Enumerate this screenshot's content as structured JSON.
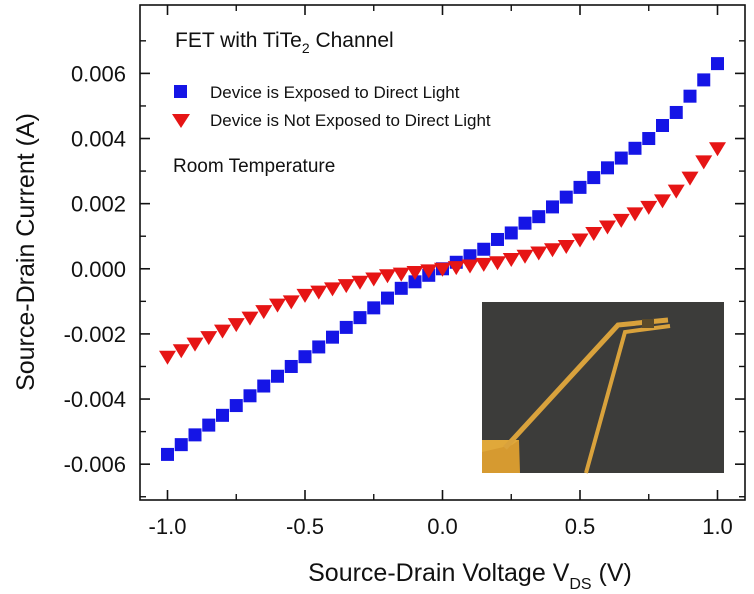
{
  "chart_data": {
    "type": "scatter",
    "xlabel": "Source-Drain Voltage V",
    "xlabel_sub": "DS",
    "xlabel_unit": " (V)",
    "ylabel": "Source-Drain Current (A)",
    "xlim": [
      -1.1,
      1.1
    ],
    "ylim": [
      -0.0071,
      0.0081
    ],
    "x_ticks": [
      -1.0,
      -0.5,
      0.0,
      0.5,
      1.0
    ],
    "x_tick_labels": [
      "-1.0",
      "-0.5",
      "0.0",
      "0.5",
      "1.0"
    ],
    "y_ticks": [
      -0.006,
      -0.004,
      -0.002,
      0.0,
      0.002,
      0.004,
      0.006
    ],
    "y_tick_labels": [
      "-0.006",
      "-0.004",
      "-0.002",
      "0.000",
      "0.002",
      "0.004",
      "0.006"
    ],
    "grid": false,
    "legend_position": "top-left",
    "annotations": {
      "title_main": "FET with TiTe",
      "title_sub": "2",
      "title_rest": " Channel",
      "condition": "Room Temperature"
    },
    "inset": "optical micrograph of the device",
    "series": [
      {
        "name": "Device is Exposed to Direct Light",
        "marker": "square",
        "color": "#1515e6",
        "points": [
          [
            -1.0,
            -0.0057
          ],
          [
            -0.95,
            -0.0054
          ],
          [
            -0.9,
            -0.0051
          ],
          [
            -0.85,
            -0.0048
          ],
          [
            -0.8,
            -0.0045
          ],
          [
            -0.75,
            -0.0042
          ],
          [
            -0.7,
            -0.0039
          ],
          [
            -0.65,
            -0.0036
          ],
          [
            -0.6,
            -0.0033
          ],
          [
            -0.55,
            -0.003
          ],
          [
            -0.5,
            -0.0027
          ],
          [
            -0.45,
            -0.0024
          ],
          [
            -0.4,
            -0.0021
          ],
          [
            -0.35,
            -0.0018
          ],
          [
            -0.3,
            -0.0015
          ],
          [
            -0.25,
            -0.0012
          ],
          [
            -0.2,
            -0.0009
          ],
          [
            -0.15,
            -0.0006
          ],
          [
            -0.1,
            -0.0004
          ],
          [
            -0.05,
            -0.0002
          ],
          [
            0.0,
            0.0
          ],
          [
            0.05,
            0.0002
          ],
          [
            0.1,
            0.0004
          ],
          [
            0.15,
            0.0006
          ],
          [
            0.2,
            0.0009
          ],
          [
            0.25,
            0.0011
          ],
          [
            0.3,
            0.0014
          ],
          [
            0.35,
            0.0016
          ],
          [
            0.4,
            0.0019
          ],
          [
            0.45,
            0.0022
          ],
          [
            0.5,
            0.0025
          ],
          [
            0.55,
            0.0028
          ],
          [
            0.6,
            0.0031
          ],
          [
            0.65,
            0.0034
          ],
          [
            0.7,
            0.0037
          ],
          [
            0.75,
            0.004
          ],
          [
            0.8,
            0.0044
          ],
          [
            0.85,
            0.0048
          ],
          [
            0.9,
            0.0053
          ],
          [
            0.95,
            0.0058
          ],
          [
            1.0,
            0.0063
          ]
        ]
      },
      {
        "name": "Device is Not Exposed to Direct Light",
        "marker": "triangle-down",
        "color": "#e61515",
        "points": [
          [
            -1.0,
            -0.0027
          ],
          [
            -0.95,
            -0.0025
          ],
          [
            -0.9,
            -0.0023
          ],
          [
            -0.85,
            -0.0021
          ],
          [
            -0.8,
            -0.0019
          ],
          [
            -0.75,
            -0.0017
          ],
          [
            -0.7,
            -0.0015
          ],
          [
            -0.65,
            -0.0013
          ],
          [
            -0.6,
            -0.0011
          ],
          [
            -0.55,
            -0.001
          ],
          [
            -0.5,
            -0.0008
          ],
          [
            -0.45,
            -0.0007
          ],
          [
            -0.4,
            -0.0006
          ],
          [
            -0.35,
            -0.0005
          ],
          [
            -0.3,
            -0.0004
          ],
          [
            -0.25,
            -0.0003
          ],
          [
            -0.2,
            -0.0002
          ],
          [
            -0.15,
            -0.00015
          ],
          [
            -0.1,
            -0.0001
          ],
          [
            -0.05,
            -5e-05
          ],
          [
            0.0,
            0.0
          ],
          [
            0.05,
            5e-05
          ],
          [
            0.1,
            0.0001
          ],
          [
            0.15,
            0.00015
          ],
          [
            0.2,
            0.0002
          ],
          [
            0.25,
            0.0003
          ],
          [
            0.3,
            0.0004
          ],
          [
            0.35,
            0.0005
          ],
          [
            0.4,
            0.0006
          ],
          [
            0.45,
            0.0007
          ],
          [
            0.5,
            0.0009
          ],
          [
            0.55,
            0.0011
          ],
          [
            0.6,
            0.0013
          ],
          [
            0.65,
            0.0015
          ],
          [
            0.7,
            0.0017
          ],
          [
            0.75,
            0.0019
          ],
          [
            0.8,
            0.0021
          ],
          [
            0.85,
            0.0024
          ],
          [
            0.9,
            0.0028
          ],
          [
            0.95,
            0.0033
          ],
          [
            1.0,
            0.0037
          ]
        ]
      }
    ]
  }
}
